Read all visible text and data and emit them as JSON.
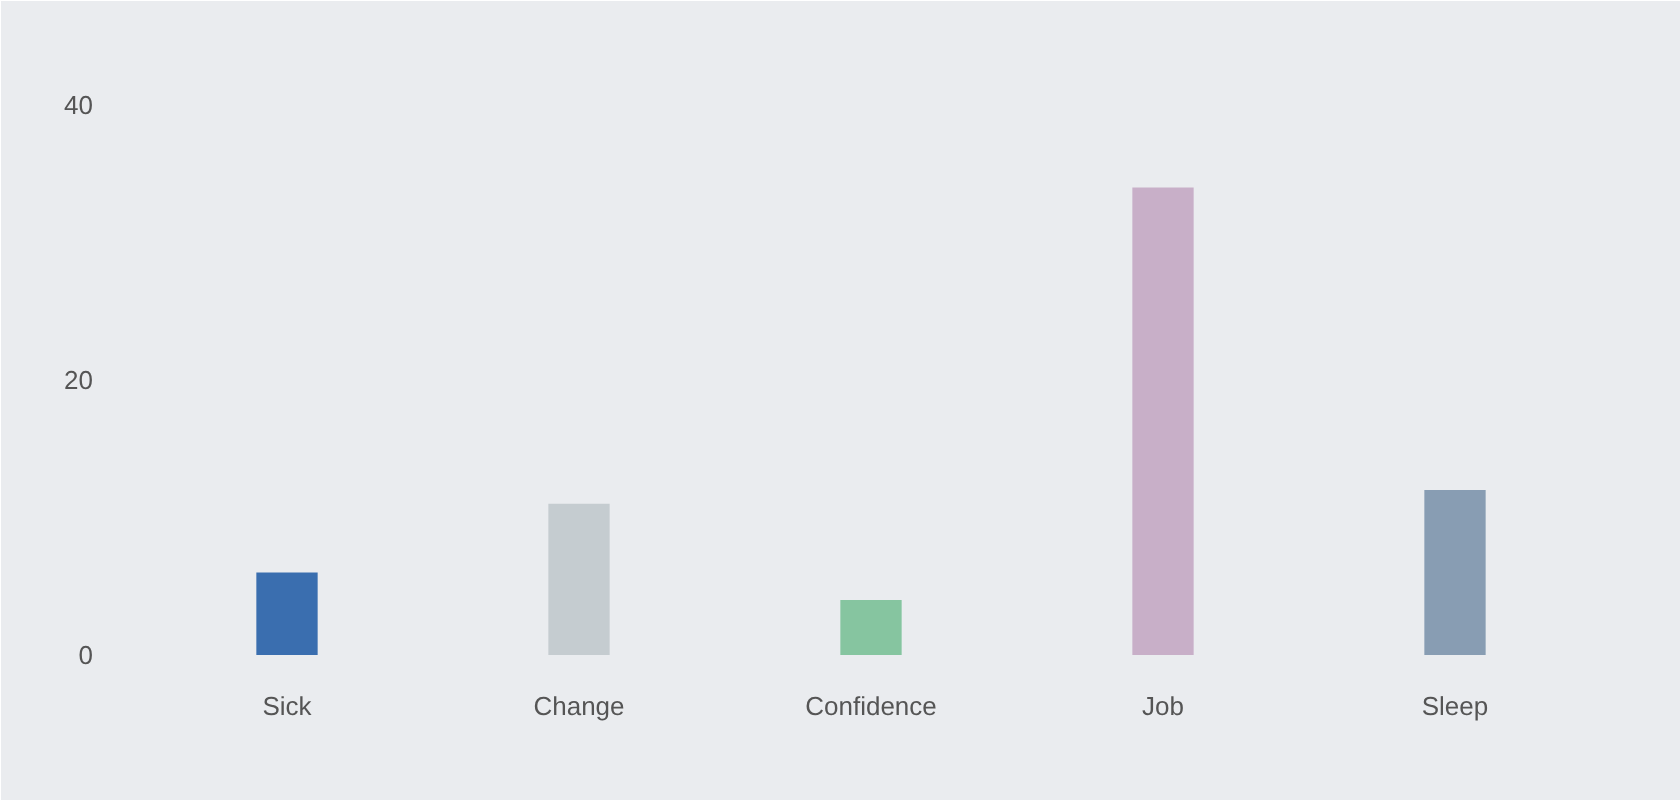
{
  "chart_data": {
    "type": "bar",
    "categories": [
      "Sick",
      "Change",
      "Confidence",
      "Job",
      "Sleep"
    ],
    "values": [
      6,
      11,
      4,
      34,
      12
    ],
    "colors": [
      "#3a6eaf",
      "#c5ccd0",
      "#86c5a0",
      "#c8afc8",
      "#889db3"
    ],
    "ylim": [
      0,
      40
    ],
    "yticks": [
      0,
      20,
      40
    ],
    "grid": false
  }
}
